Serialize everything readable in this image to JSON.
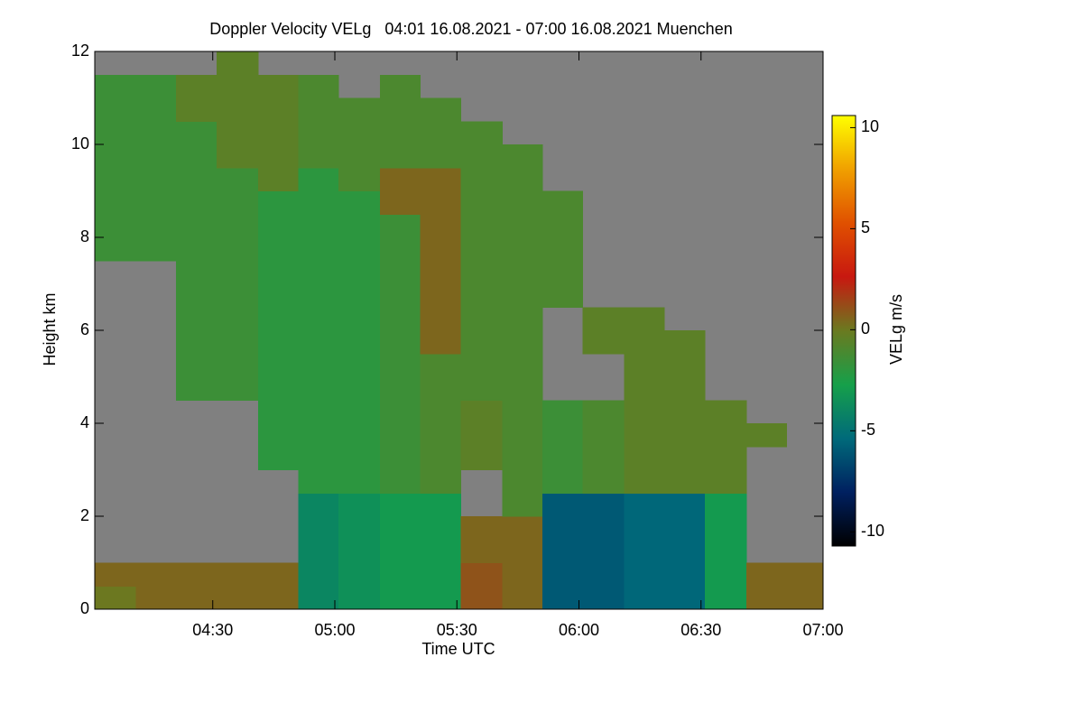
{
  "chart_data": {
    "type": "heatmap",
    "title": "Doppler Velocity VELg   04:01 16.08.2021 - 07:00 16.08.2021 Muenchen",
    "x_label": "Time UTC",
    "y_label": "Height km",
    "colorbar_label": "VELg m/s",
    "background": "#808080",
    "x": [
      4.1,
      4.27,
      4.43,
      4.6,
      4.77,
      4.93,
      5.1,
      5.27,
      5.43,
      5.6,
      5.77,
      5.93,
      6.1,
      6.27,
      6.43,
      6.6,
      6.77,
      6.93
    ],
    "y": [
      0.25,
      0.75,
      1.25,
      1.75,
      2.25,
      2.75,
      3.25,
      3.75,
      4.25,
      4.75,
      5.25,
      5.75,
      6.25,
      6.75,
      7.25,
      7.75,
      8.25,
      8.75,
      9.25,
      9.75,
      10.25,
      10.75,
      11.25,
      11.75
    ],
    "values": [
      [
        0,
        0.5,
        null,
        null,
        null,
        null,
        null,
        null,
        null,
        null,
        null,
        null,
        null,
        null,
        null,
        -1.5,
        -1.5,
        -1.5,
        -1.5,
        -1.5,
        -1.5,
        -1.5,
        -1.5,
        null
      ],
      [
        0.5,
        0.5,
        null,
        null,
        null,
        null,
        null,
        null,
        null,
        null,
        null,
        null,
        null,
        null,
        null,
        -1.5,
        -1.5,
        -1.5,
        -1.5,
        -1.5,
        -1.5,
        -1.5,
        -1.5,
        null
      ],
      [
        0.5,
        0.5,
        null,
        null,
        null,
        null,
        null,
        null,
        null,
        -1.5,
        -1.5,
        -1.5,
        -1.5,
        -1.5,
        -1.5,
        -1.5,
        -1.5,
        -1.5,
        -1.5,
        -1.5,
        -1.5,
        -0.5,
        -0.5,
        null
      ],
      [
        0.5,
        0.5,
        null,
        null,
        null,
        null,
        null,
        null,
        null,
        -1.5,
        -1.5,
        -1.5,
        -1.5,
        -1.5,
        -1.5,
        -1.5,
        -1.5,
        -1.5,
        -1.5,
        -0.5,
        -0.5,
        -0.5,
        -0.5,
        -0.5
      ],
      [
        0.5,
        0.5,
        null,
        null,
        null,
        null,
        -2,
        -2,
        -2,
        -2,
        -2,
        -2,
        -2,
        -2,
        -2,
        -2,
        -2,
        -2,
        -0.5,
        -0.5,
        -0.5,
        -0.5,
        -0.5,
        null
      ],
      [
        -4,
        -4,
        -4,
        -4,
        -4,
        -2,
        -2,
        -2,
        -2,
        -2,
        -2,
        -2,
        -2,
        -2,
        -2,
        -2,
        -2,
        -2,
        -2,
        -1,
        -1,
        -1,
        -1,
        null
      ],
      [
        -3.5,
        -3.5,
        -3.5,
        -3.5,
        -3.5,
        -2,
        -2,
        -2,
        -2,
        -2,
        -2,
        -2,
        -2,
        -2,
        -2,
        -2,
        -2,
        -2,
        -1,
        -1,
        -1,
        -1,
        null,
        null
      ],
      [
        -3,
        -3,
        -3,
        -3,
        -3,
        -1.5,
        -1.5,
        -1.5,
        -1.5,
        -1.5,
        -1.5,
        -1.5,
        -1.5,
        -1.5,
        -1.5,
        -1.5,
        -1.5,
        0.5,
        0.5,
        -1,
        -1,
        -1,
        -1,
        null
      ],
      [
        -3,
        -3,
        -3,
        -3,
        -3,
        -1,
        -1,
        -1,
        -1,
        -1,
        -1,
        0.5,
        0.5,
        0.5,
        0.5,
        0.5,
        0.5,
        0.5,
        0.5,
        -1,
        -1,
        -1,
        null,
        null
      ],
      [
        1,
        1,
        0.5,
        0.5,
        null,
        null,
        -0.5,
        -0.5,
        -0.5,
        -1,
        -1,
        -1,
        -1,
        -1,
        -1,
        -1,
        -1,
        -1,
        -1,
        -1,
        -1,
        null,
        null,
        null
      ],
      [
        0.5,
        0.5,
        0.5,
        0.5,
        -1,
        -1,
        -1,
        -1,
        -1,
        -1,
        -1,
        -1,
        -1,
        -1,
        -1,
        -1,
        -1,
        -1,
        -1,
        -1,
        null,
        null,
        null,
        null
      ],
      [
        -6,
        -6,
        -6,
        -6,
        -6,
        -1.5,
        -1.5,
        -1.5,
        -1.5,
        null,
        null,
        null,
        null,
        -1,
        -1,
        -1,
        -1,
        -1,
        null,
        null,
        null,
        null,
        null,
        null
      ],
      [
        -6,
        -6,
        -6,
        -6,
        -6,
        -1,
        -1,
        -1,
        -1,
        null,
        null,
        -0.5,
        -0.5,
        null,
        null,
        null,
        null,
        null,
        null,
        null,
        null,
        null,
        null,
        null
      ],
      [
        -5.5,
        -5.5,
        -5.5,
        -5.5,
        -5.5,
        -0.5,
        -0.5,
        -0.5,
        -0.5,
        -0.5,
        -0.5,
        -0.5,
        -0.5,
        null,
        null,
        null,
        null,
        null,
        null,
        null,
        null,
        null,
        null,
        null
      ],
      [
        -5.5,
        -5.5,
        -5.5,
        -5.5,
        -5.5,
        -0.5,
        -0.5,
        -0.5,
        -0.5,
        -0.5,
        -0.5,
        -0.5,
        null,
        null,
        null,
        null,
        null,
        null,
        null,
        null,
        null,
        null,
        null,
        null
      ],
      [
        -3,
        -3,
        -3,
        -3,
        -3,
        -0.5,
        -0.5,
        -0.5,
        -0.5,
        null,
        null,
        null,
        null,
        null,
        null,
        null,
        null,
        null,
        null,
        null,
        null,
        null,
        null,
        null
      ],
      [
        0.5,
        0.5,
        null,
        null,
        null,
        null,
        null,
        -0.5,
        null,
        null,
        null,
        null,
        null,
        null,
        null,
        null,
        null,
        null,
        null,
        null,
        null,
        null,
        null,
        null
      ],
      [
        0.5,
        0.5,
        null,
        null,
        null,
        null,
        null,
        null,
        null,
        null,
        null,
        null,
        null,
        null,
        null,
        null,
        null,
        null,
        null,
        null,
        null,
        null,
        null,
        null
      ]
    ],
    "xlim": [
      4.0167,
      7.0
    ],
    "xticks": [
      {
        "value": 4.5,
        "label": "04:30"
      },
      {
        "value": 5.0,
        "label": "05:00"
      },
      {
        "value": 5.5,
        "label": "05:30"
      },
      {
        "value": 6.0,
        "label": "06:00"
      },
      {
        "value": 6.5,
        "label": "06:30"
      },
      {
        "value": 7.0,
        "label": "07:00"
      }
    ],
    "ylim": [
      0,
      12
    ],
    "yticks": [
      0,
      2,
      4,
      6,
      8,
      10,
      12
    ],
    "zlim": [
      -10.7,
      10.6
    ],
    "zticks": [
      -10,
      -5,
      0,
      5,
      10
    ],
    "colormap": [
      "#000000",
      "#002060",
      "#006a7a",
      "#16a04a",
      "#6a7a20",
      "#c81810",
      "#e05000",
      "#f0a000",
      "#ffff00"
    ]
  }
}
